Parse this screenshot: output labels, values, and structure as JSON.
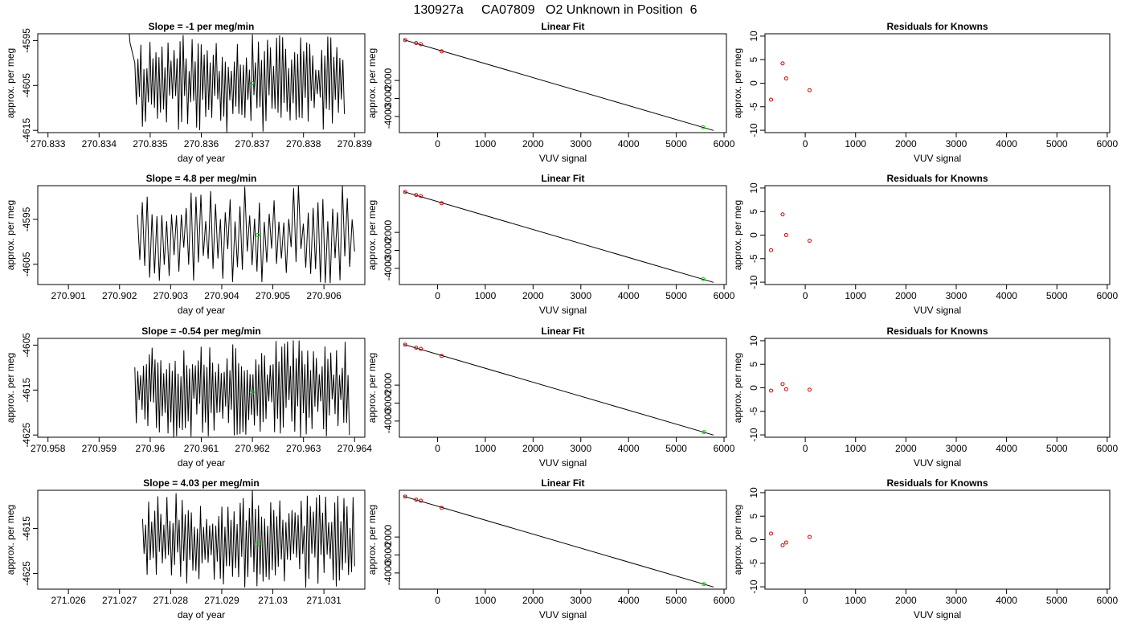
{
  "page_title": "130927a     CA07809   O2 Unknown in Position  6",
  "colors": {
    "trace": "#000000",
    "unknown_marker": "#00cc00",
    "known_marker": "#cc0000",
    "fit_line": "#000000",
    "frame": "#000000"
  },
  "chart_data": [
    {
      "panel": "time-series-1",
      "type": "line",
      "title": "Slope =  -1  per meg/min",
      "xlabel": "day of year",
      "ylabel": "approx. per meg",
      "xlim": [
        270.8328,
        270.8392
      ],
      "ylim": [
        -4615.5,
        -4593.5
      ],
      "xticks": [
        270.833,
        270.834,
        270.835,
        270.836,
        270.837,
        270.838,
        270.839
      ],
      "yticks": [
        -4595,
        -4605,
        -4615
      ],
      "trace": {
        "x_start": 270.8347,
        "x_end": 270.8388,
        "y_range": [
          -4615.5,
          -4593.5
        ],
        "n": 140,
        "seed": 11,
        "lead_in": true
      },
      "marker": {
        "x": 270.837,
        "y": -4604.5
      }
    },
    {
      "panel": "fit-1",
      "type": "scatter",
      "title": "Linear Fit",
      "xlabel": "VUV signal",
      "ylabel": "approx. per meg",
      "xlim": [
        -800,
        6050
      ],
      "ylim": [
        -4900,
        600
      ],
      "xticks": [
        0,
        1000,
        2000,
        3000,
        4000,
        5000,
        6000
      ],
      "yticks": [
        -2000,
        -3000,
        -4000
      ],
      "known_points": [
        {
          "x": -680,
          "y": 250
        },
        {
          "x": -450,
          "y": 80
        },
        {
          "x": -350,
          "y": 20
        },
        {
          "x": 85,
          "y": -380
        }
      ],
      "unknown_point": {
        "x": 5560,
        "y": -4604
      },
      "fit_line": {
        "x": [
          -700,
          5780
        ],
        "y": [
          260,
          -4780
        ]
      }
    },
    {
      "panel": "residuals-1",
      "type": "scatter",
      "title": "Residuals for Knowns",
      "xlabel": "VUV signal",
      "ylabel": "approx. per meg",
      "xlim": [
        -800,
        6050
      ],
      "ylim": [
        -10.5,
        10.5
      ],
      "xticks": [
        0,
        1000,
        2000,
        3000,
        4000,
        5000,
        6000
      ],
      "yticks": [
        10,
        5,
        0,
        -5,
        -10
      ],
      "points": [
        {
          "x": -680,
          "y": -3.5
        },
        {
          "x": -450,
          "y": 4.2
        },
        {
          "x": -380,
          "y": 1.0
        },
        {
          "x": 85,
          "y": -1.5
        }
      ]
    },
    {
      "panel": "time-series-2",
      "type": "line",
      "title": "Slope =  4.8  per meg/min",
      "xlabel": "day of year",
      "ylabel": "approx. per meg",
      "xlim": [
        270.9004,
        270.9068
      ],
      "ylim": [
        -4609.5,
        -4587.5
      ],
      "xticks": [
        270.901,
        270.902,
        270.903,
        270.904,
        270.905,
        270.906
      ],
      "yticks": [
        -4595,
        -4605
      ],
      "trace": {
        "x_start": 270.90235,
        "x_end": 270.9066,
        "y_range": [
          -4609.5,
          -4587.5
        ],
        "n": 90,
        "seed": 23,
        "lead_in": false
      },
      "marker": {
        "x": 270.9047,
        "y": -4598.5
      }
    },
    {
      "panel": "fit-2",
      "type": "scatter",
      "title": "Linear Fit",
      "xlabel": "VUV signal",
      "ylabel": "approx. per meg",
      "xlim": [
        -800,
        6050
      ],
      "ylim": [
        -4900,
        600
      ],
      "xticks": [
        0,
        1000,
        2000,
        3000,
        4000,
        5000,
        6000
      ],
      "yticks": [
        -2000,
        -3000,
        -4000
      ],
      "known_points": [
        {
          "x": -680,
          "y": 250
        },
        {
          "x": -450,
          "y": 80
        },
        {
          "x": -350,
          "y": 20
        },
        {
          "x": 85,
          "y": -380
        }
      ],
      "unknown_point": {
        "x": 5560,
        "y": -4598
      },
      "fit_line": {
        "x": [
          -700,
          5780
        ],
        "y": [
          260,
          -4780
        ]
      }
    },
    {
      "panel": "residuals-2",
      "type": "scatter",
      "title": "Residuals for Knowns",
      "xlabel": "VUV signal",
      "ylabel": "approx. per meg",
      "xlim": [
        -800,
        6050
      ],
      "ylim": [
        -10.5,
        10.5
      ],
      "xticks": [
        0,
        1000,
        2000,
        3000,
        4000,
        5000,
        6000
      ],
      "yticks": [
        10,
        5,
        0,
        -5,
        -10
      ],
      "points": [
        {
          "x": -680,
          "y": -3.2
        },
        {
          "x": -450,
          "y": 4.4
        },
        {
          "x": -380,
          "y": 0.0
        },
        {
          "x": 85,
          "y": -1.2
        }
      ]
    },
    {
      "panel": "time-series-3",
      "type": "line",
      "title": "Slope =  -0.54  per meg/min",
      "xlabel": "day of year",
      "ylabel": "approx. per meg",
      "xlim": [
        270.9578,
        270.9642
      ],
      "ylim": [
        -4625.5,
        -4603.5
      ],
      "xticks": [
        270.958,
        270.959,
        270.96,
        270.961,
        270.962,
        270.963,
        270.964
      ],
      "yticks": [
        -4605,
        -4615,
        -4625
      ],
      "trace": {
        "x_start": 270.9597,
        "x_end": 270.9639,
        "y_range": [
          -4625.5,
          -4603.5
        ],
        "n": 150,
        "seed": 37,
        "lead_in": false
      },
      "marker": {
        "x": 270.962,
        "y": -4615.5
      }
    },
    {
      "panel": "fit-3",
      "type": "scatter",
      "title": "Linear Fit",
      "xlabel": "VUV signal",
      "ylabel": "approx. per meg",
      "xlim": [
        -800,
        6050
      ],
      "ylim": [
        -4900,
        600
      ],
      "xticks": [
        0,
        1000,
        2000,
        3000,
        4000,
        5000,
        6000
      ],
      "yticks": [
        -2000,
        -3000,
        -4000
      ],
      "known_points": [
        {
          "x": -680,
          "y": 250
        },
        {
          "x": -450,
          "y": 80
        },
        {
          "x": -350,
          "y": 20
        },
        {
          "x": 85,
          "y": -380
        }
      ],
      "unknown_point": {
        "x": 5580,
        "y": -4615
      },
      "fit_line": {
        "x": [
          -700,
          5780
        ],
        "y": [
          260,
          -4780
        ]
      }
    },
    {
      "panel": "residuals-3",
      "type": "scatter",
      "title": "Residuals for Knowns",
      "xlabel": "VUV signal",
      "ylabel": "approx. per meg",
      "xlim": [
        -800,
        6050
      ],
      "ylim": [
        -10.5,
        10.5
      ],
      "xticks": [
        0,
        1000,
        2000,
        3000,
        4000,
        5000,
        6000
      ],
      "yticks": [
        10,
        5,
        0,
        -5,
        -10
      ],
      "points": [
        {
          "x": -680,
          "y": -0.6
        },
        {
          "x": -450,
          "y": 0.8
        },
        {
          "x": -380,
          "y": -0.3
        },
        {
          "x": 85,
          "y": -0.4
        }
      ]
    },
    {
      "panel": "time-series-4",
      "type": "line",
      "title": "Slope =  4.03  per meg/min",
      "xlabel": "day of year",
      "ylabel": "approx. per meg",
      "xlim": [
        271.0254,
        271.0318
      ],
      "ylim": [
        -4628.5,
        -4606.5
      ],
      "xticks": [
        271.026,
        271.027,
        271.028,
        271.029,
        271.03,
        271.031
      ],
      "yticks": [
        -4615,
        -4625
      ],
      "trace": {
        "x_start": 271.02745,
        "x_end": 271.0316,
        "y_range": [
          -4628.5,
          -4606.5
        ],
        "n": 140,
        "seed": 53,
        "lead_in": false
      },
      "marker": {
        "x": 271.0297,
        "y": -4618.5
      }
    },
    {
      "panel": "fit-4",
      "type": "scatter",
      "title": "Linear Fit",
      "xlabel": "VUV signal",
      "ylabel": "approx. per meg",
      "xlim": [
        -800,
        6050
      ],
      "ylim": [
        -4900,
        600
      ],
      "xticks": [
        0,
        1000,
        2000,
        3000,
        4000,
        5000,
        6000
      ],
      "yticks": [
        -2000,
        -3000,
        -4000
      ],
      "known_points": [
        {
          "x": -680,
          "y": 250
        },
        {
          "x": -450,
          "y": 80
        },
        {
          "x": -350,
          "y": 20
        },
        {
          "x": 85,
          "y": -380
        }
      ],
      "unknown_point": {
        "x": 5580,
        "y": -4618
      },
      "fit_line": {
        "x": [
          -700,
          5780
        ],
        "y": [
          260,
          -4780
        ]
      }
    },
    {
      "panel": "residuals-4",
      "type": "scatter",
      "title": "Residuals for Knowns",
      "xlabel": "VUV signal",
      "ylabel": "approx. per meg",
      "xlim": [
        -800,
        6050
      ],
      "ylim": [
        -10.5,
        10.5
      ],
      "xticks": [
        0,
        1000,
        2000,
        3000,
        4000,
        5000,
        6000
      ],
      "yticks": [
        10,
        5,
        0,
        -5,
        -10
      ],
      "points": [
        {
          "x": -680,
          "y": 1.3
        },
        {
          "x": -450,
          "y": -1.2
        },
        {
          "x": -380,
          "y": -0.6
        },
        {
          "x": 85,
          "y": 0.6
        }
      ]
    }
  ]
}
